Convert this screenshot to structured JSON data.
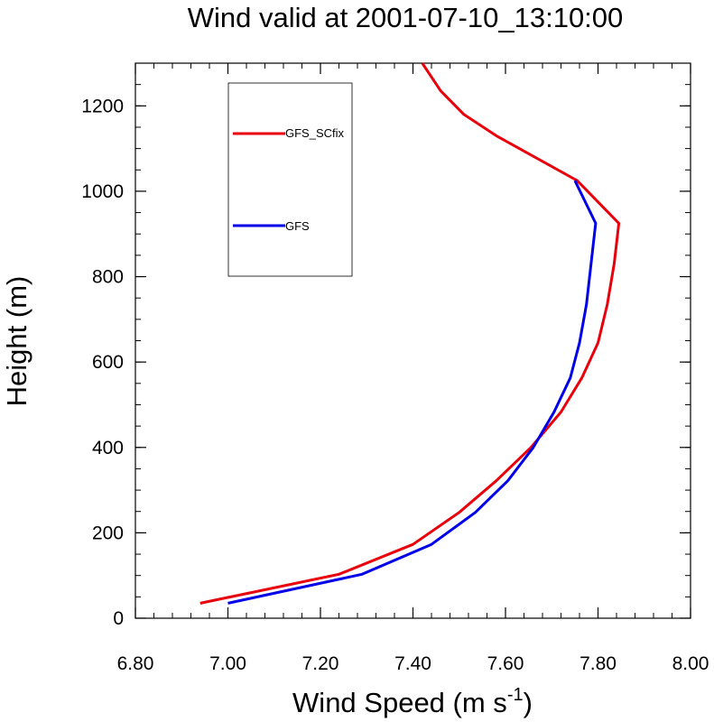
{
  "chart_data": {
    "type": "line",
    "title": "Wind valid at 2001-07-10_13:10:00",
    "xlabel_main": "Wind Speed (m s",
    "xlabel_sup": "-1",
    "xlabel_close": ")",
    "ylabel": "Height (m)",
    "xlim": [
      6.8,
      8.0
    ],
    "ylim": [
      0,
      1300
    ],
    "xticks": [
      6.8,
      7.0,
      7.2,
      7.4,
      7.6,
      7.8,
      8.0
    ],
    "xtick_labels": [
      "6.80",
      "7.00",
      "7.20",
      "7.40",
      "7.60",
      "7.80",
      "8.00"
    ],
    "yticks": [
      0,
      200,
      400,
      600,
      800,
      1000,
      1200
    ],
    "ytick_labels": [
      "0",
      "200",
      "400",
      "600",
      "800",
      "1000",
      "1200"
    ],
    "legend": {
      "placement": "top-left",
      "boxed": true
    },
    "series": [
      {
        "name": "GFS_SCfix",
        "color": "#e8000b",
        "x": [
          6.94,
          7.24,
          7.4,
          7.5,
          7.58,
          7.655,
          7.72,
          7.765,
          7.8,
          7.82,
          7.835,
          7.845,
          7.755,
          7.58,
          7.51,
          7.46,
          7.42
        ],
        "y": [
          35,
          103,
          173,
          248,
          322,
          400,
          483,
          563,
          645,
          735,
          830,
          925,
          1025,
          1130,
          1180,
          1235,
          1300
        ]
      },
      {
        "name": "GFS",
        "color": "#0000e8",
        "x": [
          7.0,
          7.29,
          7.44,
          7.535,
          7.605,
          7.66,
          7.705,
          7.74,
          7.76,
          7.775,
          7.785,
          7.795,
          7.75
        ],
        "y": [
          35,
          103,
          173,
          248,
          322,
          400,
          483,
          563,
          645,
          735,
          830,
          925,
          1025
        ]
      }
    ]
  }
}
